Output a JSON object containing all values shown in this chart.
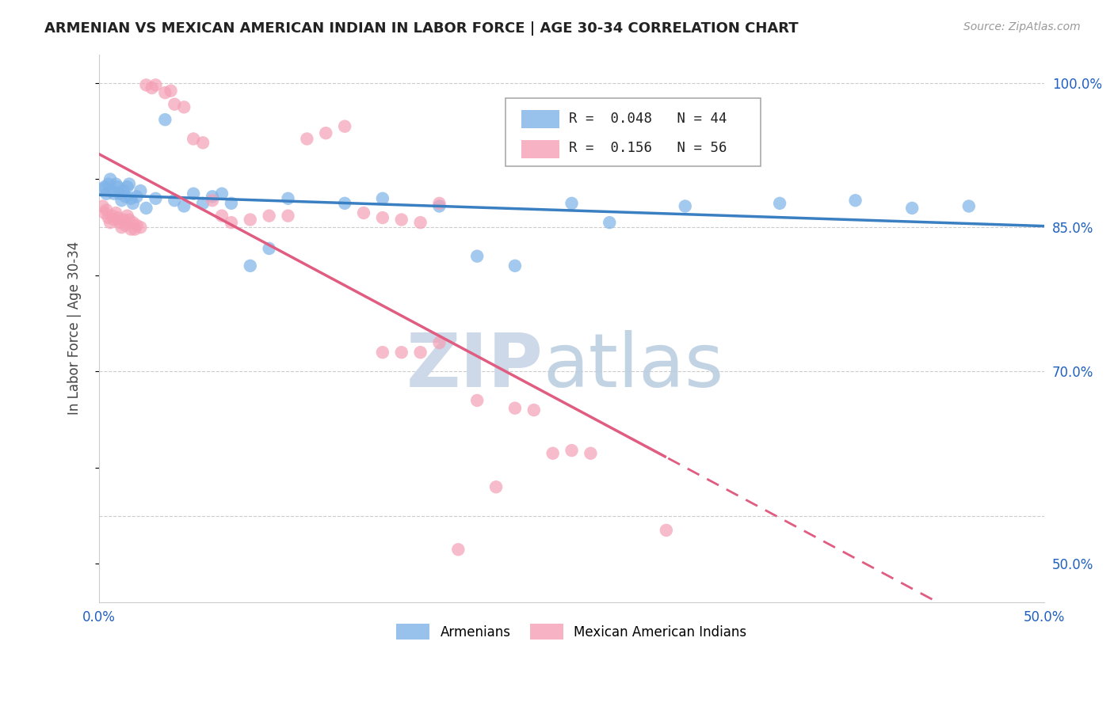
{
  "title": "ARMENIAN VS MEXICAN AMERICAN INDIAN IN LABOR FORCE | AGE 30-34 CORRELATION CHART",
  "source": "Source: ZipAtlas.com",
  "ylabel": "In Labor Force | Age 30-34",
  "xlim": [
    0.0,
    0.5
  ],
  "ylim": [
    0.46,
    1.03
  ],
  "background_color": "#ffffff",
  "armenian_color": "#7eb3e8",
  "mexican_color": "#f5a0b5",
  "armenian_line_color": "#3a7fc1",
  "mexican_line_color": "#e05c80",
  "armenian_R": 0.048,
  "armenian_N": 44,
  "mexican_R": 0.156,
  "mexican_N": 56,
  "watermark_zip": "ZIP",
  "watermark_atlas": "atlas",
  "armenian_x": [
    0.002,
    0.003,
    0.004,
    0.005,
    0.006,
    0.007,
    0.008,
    0.009,
    0.01,
    0.011,
    0.012,
    0.013,
    0.014,
    0.015,
    0.016,
    0.017,
    0.018,
    0.02,
    0.022,
    0.025,
    0.03,
    0.035,
    0.04,
    0.045,
    0.05,
    0.055,
    0.06,
    0.065,
    0.07,
    0.08,
    0.09,
    0.1,
    0.13,
    0.15,
    0.18,
    0.2,
    0.22,
    0.25,
    0.27,
    0.31,
    0.36,
    0.4,
    0.43,
    0.46
  ],
  "armenian_y": [
    0.89,
    0.892,
    0.885,
    0.895,
    0.9,
    0.888,
    0.885,
    0.895,
    0.892,
    0.885,
    0.878,
    0.888,
    0.882,
    0.892,
    0.895,
    0.88,
    0.875,
    0.882,
    0.888,
    0.87,
    0.88,
    0.962,
    0.878,
    0.872,
    0.885,
    0.875,
    0.882,
    0.885,
    0.875,
    0.81,
    0.828,
    0.88,
    0.875,
    0.88,
    0.872,
    0.82,
    0.81,
    0.875,
    0.855,
    0.872,
    0.875,
    0.878,
    0.87,
    0.872
  ],
  "mexican_x": [
    0.002,
    0.003,
    0.004,
    0.005,
    0.006,
    0.007,
    0.008,
    0.009,
    0.01,
    0.011,
    0.012,
    0.013,
    0.014,
    0.015,
    0.016,
    0.017,
    0.018,
    0.019,
    0.02,
    0.022,
    0.025,
    0.028,
    0.03,
    0.035,
    0.038,
    0.04,
    0.045,
    0.05,
    0.055,
    0.06,
    0.065,
    0.07,
    0.08,
    0.09,
    0.1,
    0.11,
    0.12,
    0.13,
    0.14,
    0.15,
    0.16,
    0.17,
    0.18,
    0.2,
    0.21,
    0.22,
    0.23,
    0.24,
    0.25,
    0.26,
    0.15,
    0.16,
    0.17,
    0.18,
    0.19,
    0.3
  ],
  "mexican_y": [
    0.872,
    0.865,
    0.868,
    0.86,
    0.855,
    0.862,
    0.858,
    0.865,
    0.86,
    0.855,
    0.85,
    0.858,
    0.852,
    0.862,
    0.858,
    0.848,
    0.855,
    0.848,
    0.852,
    0.85,
    0.998,
    0.995,
    0.998,
    0.99,
    0.992,
    0.978,
    0.975,
    0.942,
    0.938,
    0.878,
    0.862,
    0.855,
    0.858,
    0.862,
    0.862,
    0.942,
    0.948,
    0.955,
    0.865,
    0.86,
    0.858,
    0.855,
    0.875,
    0.67,
    0.58,
    0.662,
    0.66,
    0.615,
    0.618,
    0.615,
    0.72,
    0.72,
    0.72,
    0.73,
    0.515,
    0.535
  ]
}
